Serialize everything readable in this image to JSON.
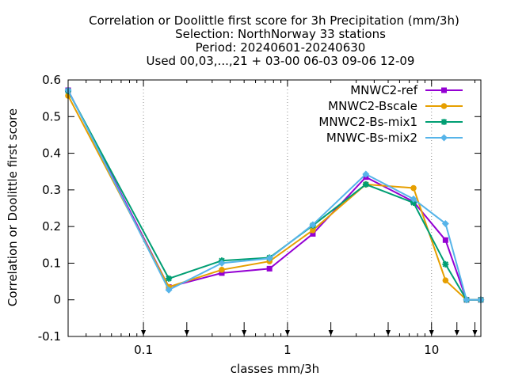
{
  "chart_data": {
    "type": "line",
    "title_lines": [
      "Correlation or Doolittle first score  for 3h Precipitation (mm/3h)",
      "Selection: NorthNorway      33 stations",
      "Period: 20240601-20240630",
      "Used 00,03,...,21 + 03-00 06-03 09-06 12-09"
    ],
    "xlabel": "classes mm/3h",
    "ylabel": "Correlation or Doolittle first score",
    "x_scale": "log",
    "xlim": [
      0.03,
      22
    ],
    "ylim": [
      -0.1,
      0.6
    ],
    "y_ticks": [
      "-0.1",
      "0",
      "0.1",
      "0.2",
      "0.3",
      "0.4",
      "0.5",
      "0.6"
    ],
    "x_ticks": [
      {
        "value": 0.1,
        "label": "0.1"
      },
      {
        "value": 1,
        "label": "1"
      },
      {
        "value": 10,
        "label": "10"
      }
    ],
    "threshold_arrows": [
      0.1,
      0.2,
      0.5,
      1,
      2,
      5,
      10,
      15,
      20
    ],
    "legend_position": "top-right",
    "series": [
      {
        "name": "MNWC2-ref",
        "color": "#9400d3",
        "marker": "square",
        "x": [
          0.03,
          0.15,
          0.35,
          0.75,
          1.5,
          3.5,
          7.5,
          12.5,
          17.5,
          22
        ],
        "y": [
          0.572,
          0.035,
          0.073,
          0.085,
          0.18,
          0.335,
          0.268,
          0.163,
          0.0,
          0.0
        ]
      },
      {
        "name": "MNWC2-Bscale",
        "color": "#e69f00",
        "marker": "circle",
        "x": [
          0.03,
          0.15,
          0.35,
          0.75,
          1.5,
          3.5,
          7.5,
          12.5,
          17.5,
          22
        ],
        "y": [
          0.557,
          0.035,
          0.082,
          0.105,
          0.19,
          0.315,
          0.305,
          0.053,
          0.0,
          0.0
        ]
      },
      {
        "name": "MNWC2-Bs-mix1",
        "color": "#009e73",
        "marker": "star",
        "x": [
          0.03,
          0.15,
          0.35,
          0.75,
          1.5,
          3.5,
          7.5,
          12.5,
          17.5,
          22
        ],
        "y": [
          0.57,
          0.058,
          0.107,
          0.115,
          0.203,
          0.315,
          0.265,
          0.097,
          0.0,
          0.0
        ]
      },
      {
        "name": "MNWC-Bs-mix2",
        "color": "#56b4e9",
        "marker": "diamond",
        "x": [
          0.03,
          0.15,
          0.35,
          0.75,
          1.5,
          3.5,
          7.5,
          12.5,
          17.5,
          22
        ],
        "y": [
          0.572,
          0.027,
          0.1,
          0.113,
          0.205,
          0.343,
          0.275,
          0.208,
          0.0,
          0.0
        ]
      }
    ]
  }
}
